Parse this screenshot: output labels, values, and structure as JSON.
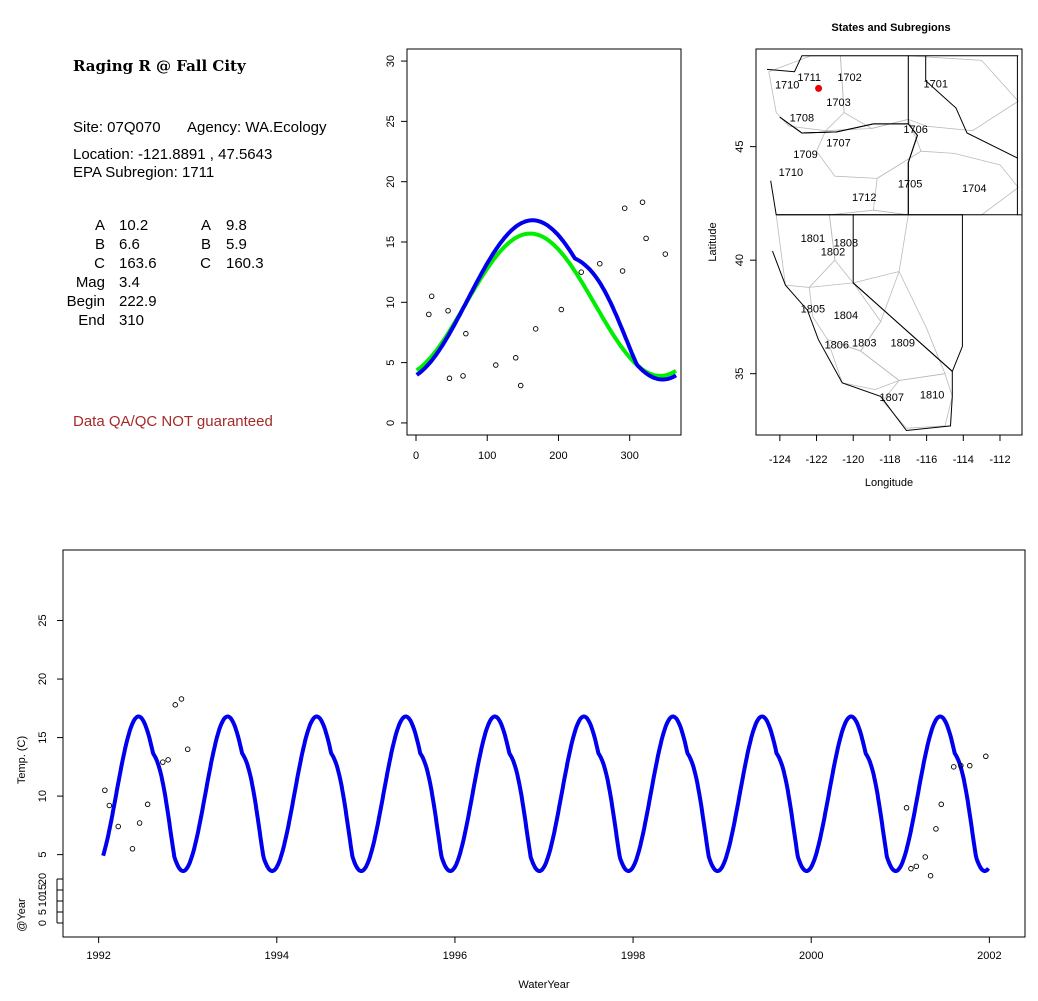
{
  "site": {
    "title": "Raging R @ Fall City",
    "site_label": "Site: 07Q070",
    "agency_label": "Agency: WA.Ecology",
    "location_label": "Location: -121.8891 , 47.5643",
    "subregion_label": "EPA Subregion: 1711",
    "qa_note": "Data QA/QC NOT guaranteed",
    "qa_color": "#a52a2a"
  },
  "params": {
    "rows": [
      {
        "name": "A",
        "col1": "10.2",
        "name2": "A",
        "col2": "9.8"
      },
      {
        "name": "B",
        "col1": "6.6",
        "name2": "B",
        "col2": "5.9"
      },
      {
        "name": "C",
        "col1": "163.6",
        "name2": "C",
        "col2": "160.3"
      },
      {
        "name": "Mag",
        "col1": "3.4",
        "name2": "",
        "col2": ""
      },
      {
        "name": "Begin",
        "col1": "222.9",
        "name2": "",
        "col2": ""
      },
      {
        "name": "End",
        "col1": "310",
        "name2": "",
        "col2": ""
      }
    ]
  },
  "colors": {
    "fit_blue": "#0000ee",
    "fit_green": "#00ee00",
    "site_marker": "#ee0000",
    "axis": "#000000",
    "state_border": "#000000",
    "subregion_border": "#bbbbbb"
  },
  "chart_data": [
    {
      "id": "annual",
      "type": "scatter",
      "title": "",
      "xlabel": "",
      "ylabel": "",
      "xlim": [
        0,
        365
      ],
      "ylim": [
        -1,
        31
      ],
      "xticks": [
        0,
        100,
        200,
        300
      ],
      "yticks": [
        0,
        5,
        10,
        15,
        20,
        25,
        30
      ],
      "points": [
        [
          18,
          9.0
        ],
        [
          22,
          10.5
        ],
        [
          45,
          9.3
        ],
        [
          47,
          3.7
        ],
        [
          66,
          3.9
        ],
        [
          70,
          7.4
        ],
        [
          112,
          4.8
        ],
        [
          140,
          5.4
        ],
        [
          147,
          3.1
        ],
        [
          168,
          7.8
        ],
        [
          204,
          9.4
        ],
        [
          232,
          12.5
        ],
        [
          258,
          13.2
        ],
        [
          290,
          12.6
        ],
        [
          293,
          17.8
        ],
        [
          318,
          18.3
        ],
        [
          323,
          15.3
        ],
        [
          350,
          14.0
        ]
      ],
      "series": [
        {
          "name": "",
          "color": "#00ee00",
          "kind": "sine",
          "A": 9.8,
          "B": 5.9,
          "C": 160.3
        },
        {
          "name": "",
          "color": "#0000ee",
          "kind": "sine-bump",
          "A": 10.2,
          "B": 6.6,
          "C": 163.6,
          "mag": 3.4,
          "begin": 222.9,
          "end": 310
        }
      ]
    },
    {
      "id": "map",
      "type": "map",
      "title": "States and Subregions",
      "xlabel": "Longitude",
      "ylabel": "Latitude",
      "xlim": [
        -125.3,
        -110.8
      ],
      "ylim": [
        32.3,
        49.3
      ],
      "xticks": [
        -124,
        -122,
        -120,
        -118,
        -116,
        -114,
        -112
      ],
      "yticks": [
        35,
        40,
        45
      ],
      "site": {
        "lon": -121.8891,
        "lat": 47.5643
      },
      "region_labels": [
        {
          "text": "1711",
          "lon": -122.4,
          "lat": 47.9
        },
        {
          "text": "1702",
          "lon": -120.2,
          "lat": 47.9
        },
        {
          "text": "1701",
          "lon": -115.5,
          "lat": 47.6
        },
        {
          "text": "1710",
          "lon": -123.6,
          "lat": 47.55
        },
        {
          "text": "1703",
          "lon": -120.8,
          "lat": 46.8
        },
        {
          "text": "1708",
          "lon": -122.8,
          "lat": 46.1
        },
        {
          "text": "1706",
          "lon": -116.6,
          "lat": 45.6
        },
        {
          "text": "1707",
          "lon": -120.8,
          "lat": 45.0
        },
        {
          "text": "1709",
          "lon": -122.6,
          "lat": 44.5
        },
        {
          "text": "1710",
          "lon": -123.4,
          "lat": 43.7
        },
        {
          "text": "1705",
          "lon": -116.9,
          "lat": 43.2
        },
        {
          "text": "1704",
          "lon": -113.4,
          "lat": 43.0
        },
        {
          "text": "1712",
          "lon": -119.4,
          "lat": 42.6
        },
        {
          "text": "1801",
          "lon": -122.2,
          "lat": 40.8
        },
        {
          "text": "1808",
          "lon": -120.4,
          "lat": 40.6
        },
        {
          "text": "1802",
          "lon": -121.1,
          "lat": 40.2
        },
        {
          "text": "1805",
          "lon": -122.2,
          "lat": 37.7
        },
        {
          "text": "1804",
          "lon": -120.4,
          "lat": 37.4
        },
        {
          "text": "1809",
          "lon": -117.3,
          "lat": 36.2
        },
        {
          "text": "1806",
          "lon": -120.9,
          "lat": 36.1
        },
        {
          "text": "1803",
          "lon": -119.4,
          "lat": 36.2
        },
        {
          "text": "1810",
          "lon": -115.7,
          "lat": 33.9
        },
        {
          "text": "1807",
          "lon": -117.9,
          "lat": 33.8
        }
      ]
    },
    {
      "id": "timeseries",
      "type": "line",
      "title": "",
      "xlabel": "WaterYear",
      "ylabel": "Temp. (C)",
      "ylabel2": "@Year",
      "xlim": [
        1991.6,
        2002.4
      ],
      "ylim": [
        -0.5,
        30
      ],
      "xticks": [
        1992,
        1994,
        1996,
        1998,
        2000,
        2002
      ],
      "yticks": [
        5,
        10,
        15,
        20,
        25
      ],
      "yticks2": [
        0,
        5,
        10,
        15,
        20
      ],
      "start_year": 1992.05,
      "end_year": 2001.99,
      "points": [
        [
          1992.07,
          10.5
        ],
        [
          1992.12,
          9.2
        ],
        [
          1992.22,
          7.4
        ],
        [
          1992.38,
          5.5
        ],
        [
          1992.46,
          7.7
        ],
        [
          1992.55,
          9.3
        ],
        [
          1992.72,
          12.9
        ],
        [
          1992.78,
          13.1
        ],
        [
          1992.86,
          17.8
        ],
        [
          1992.93,
          18.3
        ],
        [
          1993.0,
          14.0
        ],
        [
          2001.07,
          9.0
        ],
        [
          2001.12,
          3.8
        ],
        [
          2001.18,
          4.0
        ],
        [
          2001.28,
          4.8
        ],
        [
          2001.34,
          3.2
        ],
        [
          2001.4,
          7.2
        ],
        [
          2001.46,
          9.3
        ],
        [
          2001.6,
          12.5
        ],
        [
          2001.68,
          12.6
        ],
        [
          2001.78,
          12.6
        ],
        [
          2001.96,
          13.4
        ]
      ]
    }
  ]
}
